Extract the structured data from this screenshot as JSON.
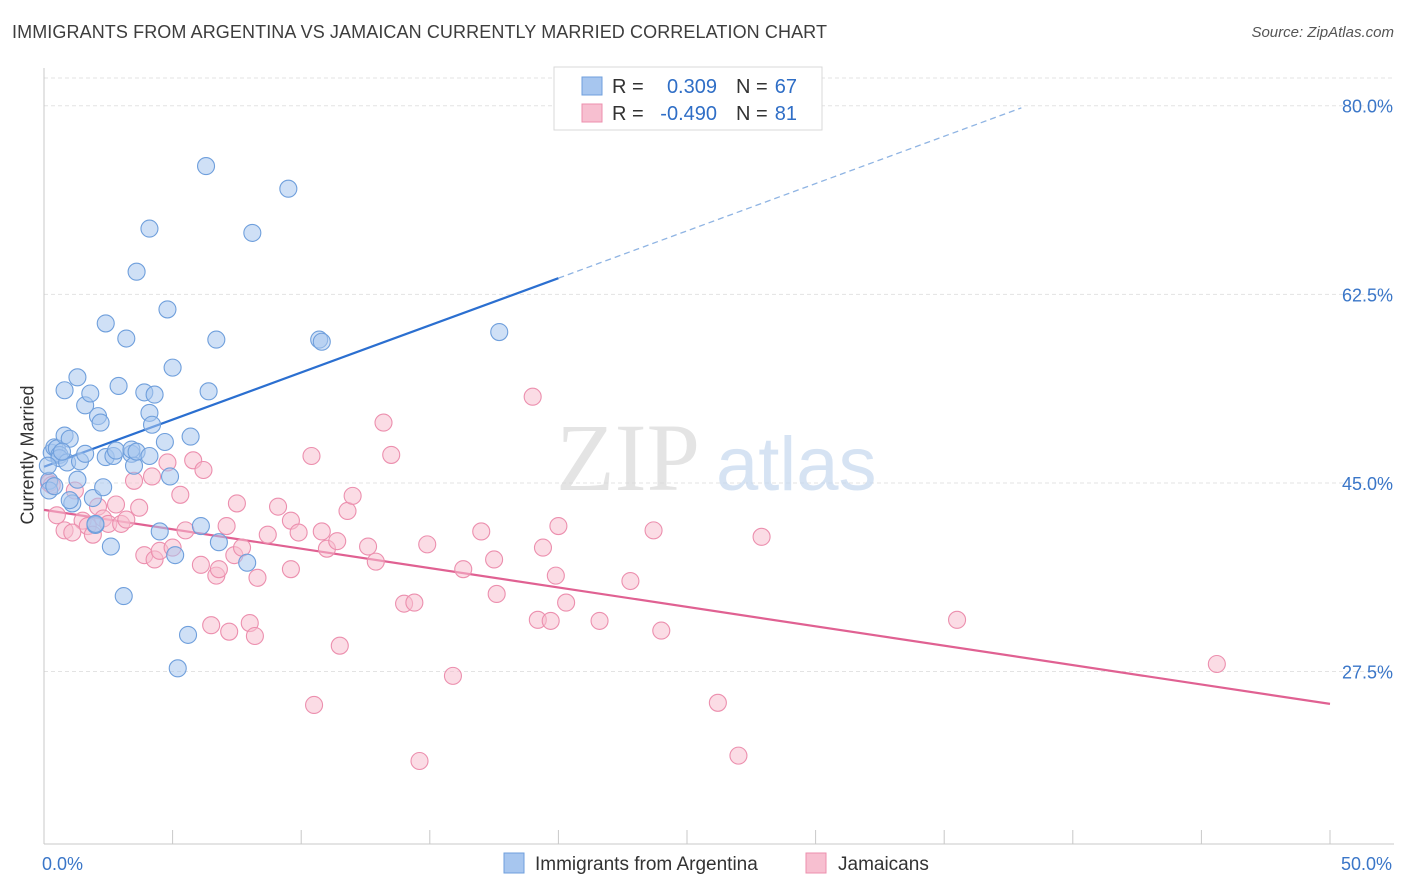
{
  "title": "IMMIGRANTS FROM ARGENTINA VS JAMAICAN CURRENTLY MARRIED CORRELATION CHART",
  "source": "Source: ZipAtlas.com",
  "watermark": {
    "zip": "ZIP",
    "atlas": "atlas"
  },
  "legend_box": {
    "r_label": "R =",
    "n_label": "N =",
    "rows": [
      {
        "r": "0.309",
        "n": "67"
      },
      {
        "r": "-0.490",
        "n": "81"
      }
    ]
  },
  "bottom_legend": [
    "Immigrants from Argentina",
    "Jamaicans"
  ],
  "colors": {
    "argentina_fill": "#a7c6ef",
    "argentina_stroke": "#6f9fdc",
    "argentina_line": "#2b6fd0",
    "jamaica_fill": "#f7bfd0",
    "jamaica_stroke": "#ec8fae",
    "jamaica_line": "#e06192",
    "axis_text": "#3a76c8",
    "grid": "#e3e3e3"
  },
  "chart_data": {
    "type": "scatter",
    "title": "IMMIGRANTS FROM ARGENTINA VS JAMAICAN CURRENTLY MARRIED CORRELATION CHART",
    "xlabel": "",
    "ylabel": "Currently Married",
    "xlim": [
      0,
      50
    ],
    "ylim": [
      11.5,
      83.5
    ],
    "x_tick_labels": [
      {
        "value": 0,
        "label": "0.0%"
      },
      {
        "value": 50,
        "label": "50.0%"
      }
    ],
    "y_ticks": [
      {
        "value": 80.0,
        "label": "80.0%"
      },
      {
        "value": 62.5,
        "label": "62.5%"
      },
      {
        "value": 45.0,
        "label": "45.0%"
      },
      {
        "value": 27.5,
        "label": "27.5%"
      }
    ],
    "grid": true,
    "legend_position": "top-center",
    "series": [
      {
        "name": "Immigrants from Argentina",
        "R": 0.309,
        "N": 67,
        "trend": {
          "x_start": 0,
          "y_start": 46.5,
          "x_end": 20,
          "y_end": 64.0,
          "dashed_to_x": 38.0,
          "dashed_to_y": 79.8
        },
        "points": [
          [
            0.2,
            45.2
          ],
          [
            0.2,
            44.3
          ],
          [
            0.3,
            47.8
          ],
          [
            0.4,
            48.3
          ],
          [
            0.5,
            48.2
          ],
          [
            0.6,
            47.6
          ],
          [
            0.6,
            47.3
          ],
          [
            0.8,
            53.6
          ],
          [
            0.8,
            49.4
          ],
          [
            0.9,
            46.9
          ],
          [
            1.0,
            49.1
          ],
          [
            1.1,
            43.1
          ],
          [
            1.3,
            45.3
          ],
          [
            1.3,
            54.8
          ],
          [
            1.4,
            47.0
          ],
          [
            1.6,
            52.2
          ],
          [
            1.6,
            47.7
          ],
          [
            1.8,
            53.3
          ],
          [
            1.9,
            43.6
          ],
          [
            2.0,
            41.1
          ],
          [
            2.1,
            51.2
          ],
          [
            2.2,
            50.6
          ],
          [
            2.3,
            44.6
          ],
          [
            2.4,
            59.8
          ],
          [
            2.4,
            47.4
          ],
          [
            2.6,
            39.1
          ],
          [
            2.7,
            47.5
          ],
          [
            2.8,
            48.0
          ],
          [
            2.9,
            54.0
          ],
          [
            3.1,
            34.5
          ],
          [
            3.2,
            58.4
          ],
          [
            3.4,
            47.7
          ],
          [
            3.4,
            48.1
          ],
          [
            3.5,
            46.6
          ],
          [
            3.6,
            47.9
          ],
          [
            3.6,
            64.6
          ],
          [
            3.9,
            53.4
          ],
          [
            4.1,
            47.5
          ],
          [
            4.1,
            68.6
          ],
          [
            4.1,
            51.5
          ],
          [
            4.2,
            50.4
          ],
          [
            4.3,
            53.2
          ],
          [
            4.5,
            40.5
          ],
          [
            4.7,
            48.8
          ],
          [
            4.8,
            61.1
          ],
          [
            4.9,
            45.6
          ],
          [
            5.0,
            55.7
          ],
          [
            5.1,
            38.3
          ],
          [
            5.2,
            27.8
          ],
          [
            5.6,
            30.9
          ],
          [
            5.7,
            49.3
          ],
          [
            6.1,
            41.0
          ],
          [
            6.3,
            74.4
          ],
          [
            6.4,
            53.5
          ],
          [
            6.7,
            58.3
          ],
          [
            6.8,
            39.5
          ],
          [
            7.9,
            37.6
          ],
          [
            8.1,
            68.2
          ],
          [
            9.5,
            72.3
          ],
          [
            10.7,
            58.3
          ],
          [
            10.8,
            58.1
          ],
          [
            17.7,
            59.0
          ],
          [
            0.15,
            46.6
          ],
          [
            0.4,
            44.7
          ],
          [
            1.0,
            43.4
          ],
          [
            2.0,
            41.2
          ],
          [
            0.7,
            47.9
          ]
        ]
      },
      {
        "name": "Jamaicans",
        "R": -0.49,
        "N": 81,
        "trend": {
          "x_start": 0,
          "y_start": 42.5,
          "x_end": 50,
          "y_end": 24.5
        },
        "points": [
          [
            0.2,
            45.0
          ],
          [
            0.3,
            44.8
          ],
          [
            0.5,
            42.0
          ],
          [
            0.8,
            40.6
          ],
          [
            1.2,
            44.3
          ],
          [
            1.5,
            41.5
          ],
          [
            1.7,
            41.0
          ],
          [
            1.9,
            40.2
          ],
          [
            2.1,
            42.8
          ],
          [
            2.3,
            41.7
          ],
          [
            2.5,
            41.2
          ],
          [
            2.8,
            43.0
          ],
          [
            3.0,
            41.2
          ],
          [
            3.2,
            41.6
          ],
          [
            3.5,
            45.2
          ],
          [
            3.7,
            42.7
          ],
          [
            3.9,
            38.3
          ],
          [
            4.2,
            45.6
          ],
          [
            4.3,
            37.9
          ],
          [
            4.5,
            38.7
          ],
          [
            4.8,
            46.9
          ],
          [
            5.0,
            39.0
          ],
          [
            5.3,
            43.9
          ],
          [
            5.5,
            40.6
          ],
          [
            5.8,
            47.1
          ],
          [
            6.1,
            37.4
          ],
          [
            6.2,
            46.2
          ],
          [
            6.5,
            31.8
          ],
          [
            6.7,
            36.4
          ],
          [
            6.8,
            37.0
          ],
          [
            7.1,
            41.0
          ],
          [
            7.2,
            31.2
          ],
          [
            7.4,
            38.3
          ],
          [
            7.5,
            43.1
          ],
          [
            7.7,
            39.0
          ],
          [
            8.0,
            32.0
          ],
          [
            8.2,
            30.8
          ],
          [
            8.3,
            36.2
          ],
          [
            8.7,
            40.2
          ],
          [
            9.1,
            42.8
          ],
          [
            9.6,
            37.0
          ],
          [
            9.6,
            41.5
          ],
          [
            9.9,
            40.4
          ],
          [
            10.4,
            47.5
          ],
          [
            10.5,
            24.4
          ],
          [
            10.8,
            40.5
          ],
          [
            11.0,
            38.9
          ],
          [
            11.4,
            39.6
          ],
          [
            11.5,
            29.9
          ],
          [
            11.8,
            42.4
          ],
          [
            12.0,
            43.8
          ],
          [
            12.6,
            39.1
          ],
          [
            12.9,
            37.7
          ],
          [
            13.2,
            50.6
          ],
          [
            13.5,
            47.6
          ],
          [
            14.0,
            33.8
          ],
          [
            14.4,
            33.9
          ],
          [
            14.6,
            19.2
          ],
          [
            14.9,
            39.3
          ],
          [
            15.9,
            27.1
          ],
          [
            16.3,
            37.0
          ],
          [
            17.0,
            40.5
          ],
          [
            17.5,
            37.9
          ],
          [
            17.6,
            34.7
          ],
          [
            19.0,
            53.0
          ],
          [
            19.2,
            32.3
          ],
          [
            19.4,
            39.0
          ],
          [
            19.7,
            32.2
          ],
          [
            19.9,
            36.4
          ],
          [
            20.0,
            41.0
          ],
          [
            20.3,
            33.9
          ],
          [
            21.6,
            32.2
          ],
          [
            22.8,
            35.9
          ],
          [
            23.7,
            40.6
          ],
          [
            24.0,
            31.3
          ],
          [
            26.2,
            24.6
          ],
          [
            27.0,
            19.7
          ],
          [
            27.9,
            40.0
          ],
          [
            35.5,
            32.3
          ],
          [
            45.6,
            28.2
          ],
          [
            1.1,
            40.4
          ]
        ]
      }
    ]
  }
}
